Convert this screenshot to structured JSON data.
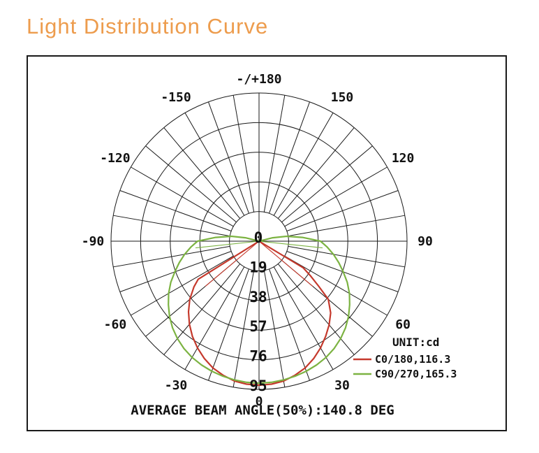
{
  "page": {
    "title": "Light Distribution Curve",
    "title_color": "#ED9C4D"
  },
  "chart_data": {
    "type": "polar-light-distribution",
    "unit_label": "UNIT:cd",
    "footer": "AVERAGE BEAM ANGLE(50%):140.8 DEG",
    "radial_ticks": [
      0,
      19,
      38,
      57,
      76,
      95
    ],
    "radial_max": 95,
    "spoke_step_deg": 10,
    "grid_color": "#1a1a1a",
    "angle_labels": [
      {
        "deg": 180,
        "text": "-/+180",
        "d": 232
      },
      {
        "deg": 150,
        "text": "150"
      },
      {
        "deg": 120,
        "text": "120"
      },
      {
        "deg": 90,
        "text": "90"
      },
      {
        "deg": 60,
        "text": "60"
      },
      {
        "deg": 30,
        "text": "30"
      },
      {
        "deg": 0,
        "text": "0",
        "d": 229
      },
      {
        "deg": -30,
        "text": "-30"
      },
      {
        "deg": -60,
        "text": "-60"
      },
      {
        "deg": -90,
        "text": "-90"
      },
      {
        "deg": -120,
        "text": "-120"
      },
      {
        "deg": -150,
        "text": "-150"
      }
    ],
    "series": [
      {
        "name": "C0/180,116.3",
        "color": "#C5392C",
        "beam_angle_deg": 116.3,
        "points": [
          [
            -61,
            0
          ],
          [
            -58,
            46
          ],
          [
            -55,
            51
          ],
          [
            -50,
            58
          ],
          [
            -45,
            64
          ],
          [
            -40,
            69.5
          ],
          [
            -35,
            74.5
          ],
          [
            -30,
            79
          ],
          [
            -25,
            83
          ],
          [
            -20,
            86.5
          ],
          [
            -15,
            89
          ],
          [
            -10,
            91
          ],
          [
            -5,
            92
          ],
          [
            0,
            92.3
          ],
          [
            5,
            92
          ],
          [
            10,
            91
          ],
          [
            15,
            89
          ],
          [
            20,
            86.5
          ],
          [
            25,
            83
          ],
          [
            30,
            79
          ],
          [
            35,
            74.5
          ],
          [
            40,
            70
          ],
          [
            45,
            65
          ],
          [
            50,
            58
          ],
          [
            53,
            48
          ],
          [
            56,
            40
          ],
          [
            59,
            33
          ],
          [
            63,
            0
          ]
        ],
        "inner_rays": [
          [
            -50,
            45
          ],
          [
            50,
            45
          ]
        ]
      },
      {
        "name": "C90/270,165.3",
        "color": "#7CB342",
        "beam_angle_deg": 165.3,
        "points": [
          [
            -108,
            0
          ],
          [
            -104,
            9
          ],
          [
            -100,
            18
          ],
          [
            -95,
            28
          ],
          [
            -90,
            39.5
          ],
          [
            -85,
            44
          ],
          [
            -80,
            48.5
          ],
          [
            -75,
            53
          ],
          [
            -70,
            57.5
          ],
          [
            -65,
            62.5
          ],
          [
            -60,
            67
          ],
          [
            -55,
            71
          ],
          [
            -50,
            75
          ],
          [
            -45,
            78.5
          ],
          [
            -40,
            81.5
          ],
          [
            -35,
            84
          ],
          [
            -30,
            86
          ],
          [
            -25,
            87.5
          ],
          [
            -20,
            88.7
          ],
          [
            -15,
            89.6
          ],
          [
            -10,
            90.3
          ],
          [
            -5,
            90.8
          ],
          [
            0,
            91
          ],
          [
            5,
            90.8
          ],
          [
            10,
            90.3
          ],
          [
            15,
            89.6
          ],
          [
            20,
            88.7
          ],
          [
            25,
            87.5
          ],
          [
            30,
            86
          ],
          [
            35,
            84
          ],
          [
            40,
            81.5
          ],
          [
            45,
            78.5
          ],
          [
            50,
            75
          ],
          [
            55,
            71
          ],
          [
            60,
            67
          ],
          [
            65,
            62.5
          ],
          [
            70,
            57.5
          ],
          [
            75,
            53
          ],
          [
            80,
            48.5
          ],
          [
            85,
            44
          ],
          [
            90,
            39.5
          ],
          [
            95,
            28
          ],
          [
            100,
            18
          ],
          [
            104,
            9
          ],
          [
            108,
            0
          ]
        ],
        "inner_rays": [
          [
            -84,
            41
          ],
          [
            84,
            41
          ]
        ]
      }
    ],
    "legend": [
      {
        "label": "C0/180,116.3",
        "color": "#C5392C"
      },
      {
        "label": "C90/270,165.3",
        "color": "#7CB342"
      }
    ],
    "average_beam_angle_50pct_deg": 140.8
  }
}
